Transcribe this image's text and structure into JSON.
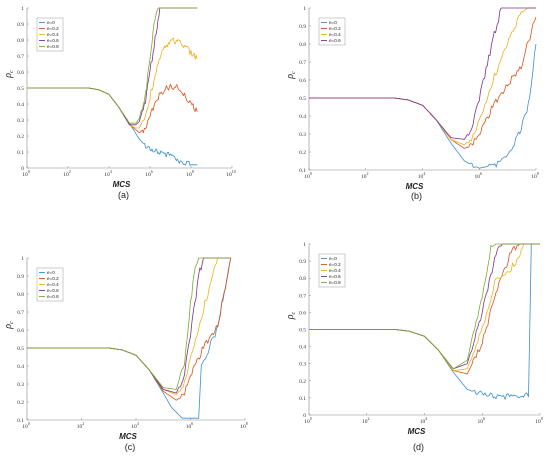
{
  "chart_data": [
    {
      "type": "line",
      "panel_label": "(a)",
      "xlabel": "MCS",
      "ylabel_main": "ρ",
      "ylabel_sub": "c",
      "x_scale": "log",
      "xlim": [
        1,
        10000000000
      ],
      "ylim": [
        0,
        1
      ],
      "x_tick_base": "10",
      "x_tick_exponents": [
        "0",
        "2",
        "4",
        "6",
        "8",
        "10"
      ],
      "y_ticks": [
        "0",
        "0.1",
        "0.2",
        "0.3",
        "0.4",
        "0.5",
        "0.6",
        "0.7",
        "0.8",
        "0.9",
        "1"
      ],
      "legend": "top-left",
      "series": [
        {
          "name": "e=0",
          "color": "#3a8fd1",
          "x": [
            1,
            1000,
            3000,
            10000,
            30000,
            100000,
            300000,
            1000000,
            3000000,
            10000000,
            30000000,
            100000000,
            200000000
          ],
          "y": [
            0.5,
            0.5,
            0.49,
            0.46,
            0.38,
            0.28,
            0.18,
            0.11,
            0.1,
            0.08,
            0.04,
            0.02,
            0.02
          ]
        },
        {
          "name": "e=0.2",
          "color": "#d95319",
          "x": [
            1,
            1000,
            3000,
            10000,
            30000,
            100000,
            200000,
            300000,
            600000,
            1000000,
            2000000,
            4000000,
            10000000,
            30000000,
            100000000,
            200000000
          ],
          "y": [
            0.5,
            0.5,
            0.49,
            0.46,
            0.38,
            0.27,
            0.24,
            0.22,
            0.25,
            0.32,
            0.42,
            0.48,
            0.51,
            0.5,
            0.4,
            0.35
          ]
        },
        {
          "name": "e=0.4",
          "color": "#edb120",
          "x": [
            1,
            1000,
            3000,
            10000,
            30000,
            100000,
            200000,
            300000,
            600000,
            1000000,
            2000000,
            4000000,
            10000000,
            30000000,
            100000000,
            200000000
          ],
          "y": [
            0.5,
            0.5,
            0.49,
            0.46,
            0.38,
            0.27,
            0.25,
            0.25,
            0.33,
            0.45,
            0.6,
            0.73,
            0.8,
            0.79,
            0.72,
            0.68
          ]
        },
        {
          "name": "e=0.6",
          "color": "#7e2f8e",
          "x": [
            1,
            1000,
            3000,
            10000,
            30000,
            100000,
            200000,
            300000,
            600000,
            1000000,
            2000000,
            3000000,
            100000000,
            200000000
          ],
          "y": [
            0.5,
            0.5,
            0.49,
            0.46,
            0.38,
            0.27,
            0.27,
            0.29,
            0.42,
            0.6,
            0.85,
            1,
            1,
            1
          ]
        },
        {
          "name": "e=0.8",
          "color": "#77ac30",
          "x": [
            1,
            1000,
            3000,
            10000,
            30000,
            100000,
            200000,
            300000,
            600000,
            1000000,
            1600000,
            2500000,
            100000000,
            200000000
          ],
          "y": [
            0.5,
            0.5,
            0.49,
            0.46,
            0.38,
            0.28,
            0.28,
            0.31,
            0.46,
            0.68,
            0.92,
            1,
            1,
            1
          ]
        }
      ]
    },
    {
      "type": "line",
      "panel_label": "(b)",
      "xlabel": "MCS",
      "ylabel_main": "ρ",
      "ylabel_sub": "c",
      "x_scale": "log",
      "xlim": [
        1,
        100000000
      ],
      "ylim": [
        0.1,
        1
      ],
      "x_tick_base": "10",
      "x_tick_exponents": [
        "0",
        "2",
        "4",
        "6",
        "8"
      ],
      "y_ticks": [
        "0.1",
        "0.2",
        "0.3",
        "0.4",
        "0.5",
        "0.6",
        "0.7",
        "0.8",
        "0.9",
        "1"
      ],
      "legend": "top-left",
      "series": [
        {
          "name": "e=0",
          "color": "#3a8fd1",
          "x": [
            1,
            1000,
            3000,
            10000,
            30000,
            100000,
            300000,
            1000000,
            2000000,
            5000000,
            10000000,
            30000000,
            60000000,
            100000000
          ],
          "y": [
            0.5,
            0.5,
            0.49,
            0.46,
            0.38,
            0.25,
            0.15,
            0.11,
            0.12,
            0.14,
            0.18,
            0.32,
            0.5,
            0.8
          ]
        },
        {
          "name": "e=0.2",
          "color": "#d95319",
          "x": [
            1,
            1000,
            3000,
            10000,
            30000,
            100000,
            300000,
            600000,
            1000000,
            3000000,
            10000000,
            30000000,
            100000000
          ],
          "y": [
            0.5,
            0.5,
            0.49,
            0.46,
            0.38,
            0.27,
            0.22,
            0.24,
            0.3,
            0.45,
            0.57,
            0.68,
            0.95
          ]
        },
        {
          "name": "e=0.4",
          "color": "#edb120",
          "x": [
            1,
            1000,
            3000,
            10000,
            30000,
            100000,
            300000,
            600000,
            1000000,
            3000000,
            10000000,
            30000000,
            50000000,
            100000000
          ],
          "y": [
            0.5,
            0.5,
            0.49,
            0.46,
            0.38,
            0.27,
            0.24,
            0.28,
            0.38,
            0.6,
            0.8,
            0.97,
            1,
            1
          ]
        },
        {
          "name": "e=0.6",
          "color": "#7e2f8e",
          "x": [
            1,
            1000,
            3000,
            10000,
            30000,
            100000,
            300000,
            600000,
            1000000,
            3000000,
            6000000,
            100000000
          ],
          "y": [
            0.5,
            0.5,
            0.49,
            0.46,
            0.38,
            0.28,
            0.27,
            0.35,
            0.5,
            0.82,
            1,
            1
          ]
        }
      ]
    },
    {
      "type": "line",
      "panel_label": "(c)",
      "xlabel": "MCS",
      "ylabel_main": "ρ",
      "ylabel_sub": "c",
      "x_scale": "log",
      "xlim": [
        1,
        100000000
      ],
      "ylim": [
        0.1,
        1
      ],
      "x_tick_base": "10",
      "x_tick_exponents": [
        "0",
        "2",
        "4",
        "6",
        "8"
      ],
      "y_ticks": [
        "0.1",
        "0.2",
        "0.3",
        "0.4",
        "0.5",
        "0.6",
        "0.7",
        "0.8",
        "0.9",
        "1"
      ],
      "legend": "top-left",
      "series": [
        {
          "name": "e=0",
          "color": "#3a8fd1",
          "x": [
            1,
            1000,
            3000,
            10000,
            30000,
            100000,
            200000,
            500000,
            1000000,
            2000000,
            2500000,
            5000000,
            10000000,
            30000000
          ],
          "y": [
            0.5,
            0.5,
            0.49,
            0.46,
            0.38,
            0.25,
            0.17,
            0.11,
            0.11,
            0.11,
            0.4,
            0.5,
            0.62,
            1
          ]
        },
        {
          "name": "e=0.2",
          "color": "#d95319",
          "x": [
            1,
            1000,
            3000,
            10000,
            30000,
            100000,
            300000,
            600000,
            1000000,
            3000000,
            10000000,
            30000000
          ],
          "y": [
            0.5,
            0.5,
            0.49,
            0.46,
            0.38,
            0.26,
            0.21,
            0.24,
            0.35,
            0.5,
            0.62,
            1
          ]
        },
        {
          "name": "e=0.4",
          "color": "#edb120",
          "x": [
            1,
            1000,
            3000,
            10000,
            30000,
            100000,
            300000,
            600000,
            1000000,
            3000000,
            10000000,
            30000000
          ],
          "y": [
            0.5,
            0.5,
            0.49,
            0.46,
            0.38,
            0.27,
            0.24,
            0.3,
            0.45,
            0.72,
            1,
            1
          ]
        },
        {
          "name": "e=0.6",
          "color": "#7e2f8e",
          "x": [
            1,
            1000,
            3000,
            10000,
            30000,
            100000,
            300000,
            600000,
            1000000,
            2000000,
            3000000,
            30000000
          ],
          "y": [
            0.5,
            0.5,
            0.49,
            0.46,
            0.38,
            0.27,
            0.25,
            0.35,
            0.58,
            0.9,
            1,
            1
          ]
        },
        {
          "name": "e=0.8",
          "color": "#77ac30",
          "x": [
            1,
            1000,
            3000,
            10000,
            30000,
            100000,
            300000,
            600000,
            1000000,
            1500000,
            2000000,
            30000000
          ],
          "y": [
            0.5,
            0.5,
            0.49,
            0.46,
            0.38,
            0.28,
            0.27,
            0.42,
            0.75,
            0.95,
            1,
            1
          ]
        }
      ]
    },
    {
      "type": "line",
      "panel_label": "(d)",
      "xlabel": "MCS",
      "ylabel_main": "ρ",
      "ylabel_sub": "c",
      "x_scale": "log",
      "xlim": [
        1,
        100000000
      ],
      "ylim": [
        0,
        1
      ],
      "x_tick_base": "10",
      "x_tick_exponents": [
        "0",
        "2",
        "4",
        "6",
        "8"
      ],
      "y_ticks": [
        "0",
        "0.1",
        "0.2",
        "0.3",
        "0.4",
        "0.5",
        "0.6",
        "0.7",
        "0.8",
        "0.9",
        "1"
      ],
      "legend": "top-left",
      "series": [
        {
          "name": "e=0",
          "color": "#3a8fd1",
          "x": [
            1,
            1000,
            3000,
            10000,
            30000,
            100000,
            300000,
            1000000,
            3000000,
            10000000,
            20000000,
            30000000,
            40000000,
            50000000,
            100000000
          ],
          "y": [
            0.5,
            0.5,
            0.49,
            0.46,
            0.38,
            0.25,
            0.15,
            0.12,
            0.11,
            0.11,
            0.1,
            0.12,
            0.1,
            1,
            1
          ]
        },
        {
          "name": "e=0.2",
          "color": "#d95319",
          "x": [
            1,
            1000,
            3000,
            10000,
            30000,
            100000,
            300000,
            1000000,
            3000000,
            10000000,
            20000000,
            100000000
          ],
          "y": [
            0.5,
            0.5,
            0.49,
            0.46,
            0.38,
            0.26,
            0.24,
            0.42,
            0.72,
            0.95,
            1,
            1
          ]
        },
        {
          "name": "e=0.4",
          "color": "#edb120",
          "x": [
            1,
            1000,
            3000,
            10000,
            30000,
            100000,
            300000,
            1000000,
            3000000,
            10000000,
            20000000,
            30000000,
            100000000
          ],
          "y": [
            0.5,
            0.5,
            0.49,
            0.46,
            0.38,
            0.26,
            0.27,
            0.5,
            0.8,
            0.86,
            0.93,
            1,
            1
          ]
        },
        {
          "name": "e=0.6",
          "color": "#7e2f8e",
          "x": [
            1,
            1000,
            3000,
            10000,
            30000,
            100000,
            300000,
            1000000,
            3000000,
            5000000,
            100000000
          ],
          "y": [
            0.5,
            0.5,
            0.49,
            0.46,
            0.38,
            0.27,
            0.3,
            0.6,
            0.95,
            1,
            1
          ]
        },
        {
          "name": "e=0.8",
          "color": "#77ac30",
          "x": [
            1,
            1000,
            3000,
            10000,
            30000,
            100000,
            300000,
            1000000,
            2000000,
            3000000,
            100000000
          ],
          "y": [
            0.5,
            0.5,
            0.49,
            0.46,
            0.38,
            0.27,
            0.32,
            0.7,
            0.98,
            1,
            1
          ]
        }
      ]
    }
  ]
}
